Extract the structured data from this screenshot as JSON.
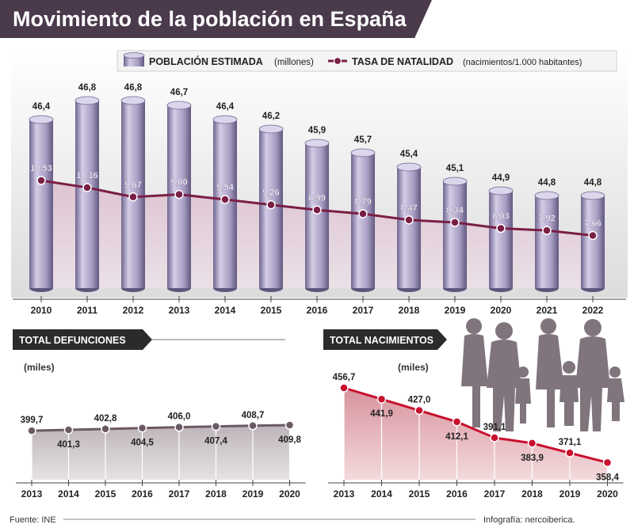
{
  "title": "Movimiento de la población en España",
  "source": "Fuente: INE",
  "credit": "Infografía: nercoiberica.",
  "legend": {
    "population_bold": "POBLACIÓN ESTIMADA",
    "population_unit": "(millones)",
    "birthrate_bold": "TASA DE NATALIDAD",
    "birthrate_unit": "(nacimientos/1.000 habitantes)"
  },
  "colors": {
    "title_bg": "#4a3a4c",
    "cylinder": "#b3a9cc",
    "cylinder_dark": "#7e739b",
    "birthrate_line": "#7a1f45",
    "deaths_area": "#c9c2c6",
    "births_area": "#e8b9bd",
    "births_line": "#c8102e"
  },
  "chart_data": [
    {
      "type": "bar",
      "title": "Movimiento de la población en España",
      "categories": [
        "2010",
        "2011",
        "2012",
        "2013",
        "2014",
        "2015",
        "2016",
        "2017",
        "2018",
        "2019",
        "2020",
        "2021",
        "2022"
      ],
      "series": [
        {
          "name": "POBLACIÓN ESTIMADA (millones)",
          "values": [
            46.4,
            46.8,
            46.8,
            46.7,
            46.4,
            46.2,
            45.9,
            45.7,
            45.4,
            45.1,
            44.9,
            44.8,
            44.8
          ],
          "labels": [
            "46,4",
            "46,8",
            "46,8",
            "46,7",
            "46,4",
            "46,2",
            "45,9",
            "45,7",
            "45,4",
            "45,1",
            "44,9",
            "44,8",
            "44,8"
          ]
        },
        {
          "name": "TASA DE NATALIDAD (nacimientos/1.000 habitantes)",
          "type": "line",
          "values": [
            10.53,
            10.16,
            9.67,
            9.8,
            9.54,
            9.26,
            8.99,
            8.79,
            8.47,
            8.34,
            8.03,
            7.92,
            7.66
          ],
          "labels": [
            "10,53",
            "10,16",
            "9,67",
            "9,80",
            "9,54",
            "9,26",
            "8,99",
            "8,79",
            "8,47",
            "8,34",
            "8,03",
            "7,92",
            "7,66"
          ]
        }
      ]
    },
    {
      "type": "area",
      "title": "TOTAL DEFUNCIONES",
      "unit": "(miles)",
      "categories": [
        "2013",
        "2014",
        "2015",
        "2016",
        "2017",
        "2018",
        "2019",
        "2020"
      ],
      "values": [
        399.7,
        401.3,
        402.8,
        404.5,
        406.0,
        407.4,
        408.7,
        409.8
      ],
      "labels": [
        "399,7",
        "401,3",
        "402,8",
        "404,5",
        "406,0",
        "407,4",
        "408,7",
        "409,8"
      ]
    },
    {
      "type": "area",
      "title": "TOTAL NACIMIENTOS",
      "unit": "(miles)",
      "categories": [
        "2013",
        "2014",
        "2015",
        "2016",
        "2017",
        "2018",
        "2019",
        "2020"
      ],
      "values": [
        456.7,
        441.9,
        427.0,
        412.1,
        391.1,
        383.9,
        371.1,
        358.4
      ],
      "labels": [
        "456,7",
        "441,9",
        "427,0",
        "412,1",
        "391,1",
        "383,9",
        "371,1",
        "358,4"
      ]
    }
  ]
}
